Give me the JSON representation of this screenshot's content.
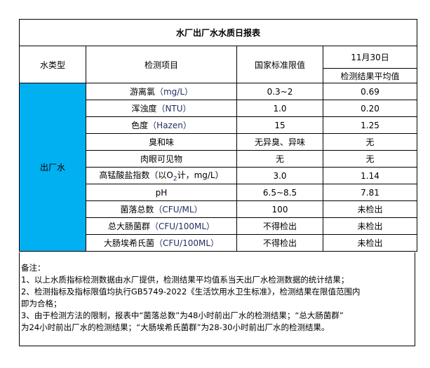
{
  "title": "水厂出厂水水质日报表",
  "headers": {
    "water_type": "水类型",
    "item": "检测项目",
    "standard": "国家标准限值",
    "date": "11月30日",
    "result": "检测结果平均值"
  },
  "water_type": "出厂水",
  "rows": [
    {
      "item": "游离氯",
      "unit": "（mg/L）",
      "standard": "0.3~2",
      "result": "0.69"
    },
    {
      "item": "浑浊度",
      "unit": "（NTU）",
      "standard": "1.0",
      "result": "0.20"
    },
    {
      "item": "色度",
      "unit": "（Hazen）",
      "standard": "15",
      "result": "1.25"
    },
    {
      "item": "臭和味",
      "unit": "",
      "standard": "无异臭、异味",
      "result": "无"
    },
    {
      "item": "肉眼可见物",
      "unit": "",
      "standard": "无",
      "result": "无"
    },
    {
      "item": "高锰酸盐指数（以O",
      "sub": "2",
      "unit2": "计，mg/L）",
      "standard": "3.0",
      "result": "1.14"
    },
    {
      "item": "pH",
      "unit": "",
      "standard": "6.5~8.5",
      "result": "7.81"
    },
    {
      "item": "菌落总数",
      "unit": "（CFU/ML）",
      "standard": "100",
      "result": "未检出"
    },
    {
      "item": "总大肠菌群",
      "unit": "（CFU/100ML）",
      "standard": "不得检出",
      "result": "未检出"
    },
    {
      "item": "大肠埃希氏菌",
      "unit": "（CFU/100ML）",
      "standard": "不得检出",
      "result": "未检出"
    }
  ],
  "notes": {
    "heading": "备注：",
    "lines": [
      "1、以上水质指标检测数据由水厂提供，检测结果平均值系当天出厂水检测数据的统计结果；",
      "2、检测指标及指标限值均执行GB5749-2022《生活饮用水卫生标准》，检测结果在限值范围内",
      "即为合格；",
      "3、由于检测方法的限制，报表中“菌落总数”为48小时前出厂水的检测结果；“总大肠菌群”",
      "为24小时前出厂水的检测结果；“大肠埃希氏菌群”为28-30小时前出厂水的检测结果。"
    ]
  },
  "colors": {
    "water_type_cell": "#00b0f0"
  }
}
